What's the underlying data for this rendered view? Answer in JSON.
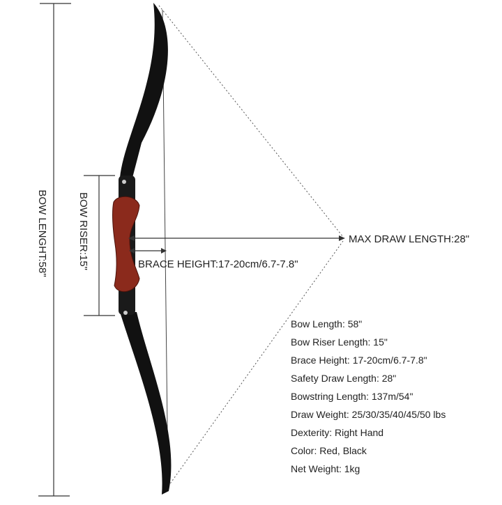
{
  "labels": {
    "bow_length": "BOW LENGHT:58\"",
    "bow_riser": "BOW RISER:15\"",
    "brace_height": "BRACE HEIGHT:17-20cm/6.7-7.8\"",
    "max_draw_length": "MAX DRAW LENGTH:28\""
  },
  "specs": [
    "Bow Length: 58\"",
    "Bow Riser Length: 15\"",
    "Brace Height: 17-20cm/6.7-7.8\"",
    "Safety Draw Length: 28\"",
    "Bowstring Length: 137m/54\"",
    "Draw Weight: 25/30/35/40/45/50 lbs",
    "Dexterity: Right Hand",
    "Color: Red, Black",
    "Net Weight: 1kg"
  ]
}
